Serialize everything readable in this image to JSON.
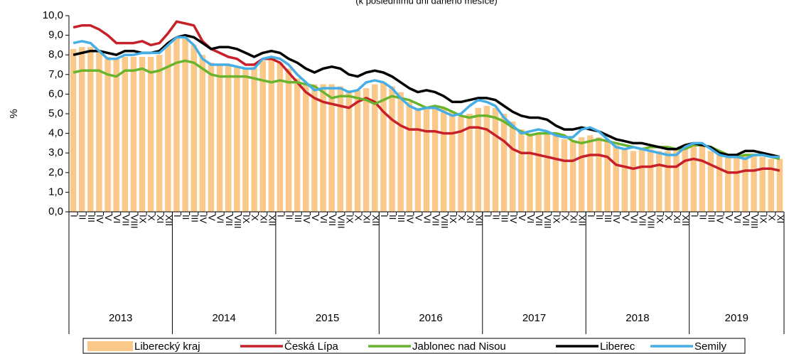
{
  "chart_data": {
    "type": "bar-line",
    "subtitle": "(k poslednímu dni daného měsíce)",
    "ylabel": "%",
    "ylim": [
      0,
      10
    ],
    "yticks": [
      {
        "value": 0,
        "label": "0,0"
      },
      {
        "value": 1,
        "label": "1,0"
      },
      {
        "value": 2,
        "label": "2,0"
      },
      {
        "value": 3,
        "label": "3,0"
      },
      {
        "value": 4,
        "label": "4,0"
      },
      {
        "value": 5,
        "label": "5,0"
      },
      {
        "value": 6,
        "label": "6,0"
      },
      {
        "value": 7,
        "label": "7,0"
      },
      {
        "value": 8,
        "label": "8,0"
      },
      {
        "value": 9,
        "label": "9,0"
      },
      {
        "value": 10,
        "label": "10,0"
      }
    ],
    "years": [
      "2013",
      "2014",
      "2015",
      "2016",
      "2017",
      "2018",
      "2019"
    ],
    "categories": [
      "I",
      "II",
      "III",
      "IV",
      "V",
      "VI",
      "VII",
      "VIII",
      "IX",
      "X",
      "XI",
      "XII",
      "I",
      "II",
      "III",
      "IV",
      "V",
      "VI",
      "VII",
      "VIII",
      "IX",
      "X",
      "XI",
      "XII",
      "I",
      "II",
      "III",
      "IV",
      "V",
      "VI",
      "VII",
      "VIII",
      "IX",
      "X",
      "XI",
      "XII",
      "I",
      "II",
      "III",
      "IV",
      "V",
      "VI",
      "VII",
      "VIII",
      "IX",
      "X",
      "XI",
      "XII",
      "I",
      "II",
      "III",
      "IV",
      "V",
      "VI",
      "VII",
      "VIII",
      "IX",
      "X",
      "XI",
      "XII",
      "I",
      "II",
      "III",
      "IV",
      "V",
      "VI",
      "VII",
      "VIII",
      "IX",
      "X",
      "XI",
      "XII",
      "I",
      "II",
      "III",
      "IV",
      "V",
      "VI",
      "VII",
      "VIII",
      "IX",
      "X",
      "XI"
    ],
    "series": [
      {
        "name": "Liberecký kraj",
        "kind": "bar",
        "color": "#fac98a",
        "values": [
          8.3,
          8.4,
          8.4,
          8.2,
          7.9,
          7.8,
          7.9,
          7.9,
          7.9,
          7.9,
          8.0,
          8.5,
          8.9,
          8.9,
          8.5,
          8.0,
          7.6,
          7.5,
          7.5,
          7.4,
          7.3,
          7.4,
          7.7,
          7.8,
          7.6,
          7.3,
          6.8,
          6.5,
          6.5,
          6.5,
          6.5,
          6.4,
          6.2,
          6.2,
          6.3,
          6.5,
          6.6,
          6.4,
          6.1,
          5.6,
          5.3,
          5.3,
          5.4,
          5.3,
          5.1,
          4.9,
          5.0,
          5.3,
          5.4,
          5.3,
          5.0,
          4.6,
          4.2,
          4.0,
          4.0,
          4.0,
          3.9,
          3.7,
          3.6,
          3.8,
          3.9,
          3.8,
          3.6,
          3.4,
          3.2,
          3.1,
          3.2,
          3.2,
          3.1,
          3.1,
          3.2,
          3.4,
          3.5,
          3.4,
          3.1,
          2.9,
          2.8,
          2.9,
          2.9,
          2.9,
          2.8,
          2.7,
          2.7
        ]
      },
      {
        "name": "Česká Lípa",
        "kind": "line",
        "color": "#c8202a",
        "values": [
          9.4,
          9.5,
          9.5,
          9.3,
          9.0,
          8.6,
          8.6,
          8.6,
          8.7,
          8.5,
          8.6,
          9.1,
          9.7,
          9.6,
          9.5,
          8.7,
          8.3,
          8.1,
          7.9,
          7.8,
          7.5,
          7.5,
          7.8,
          7.8,
          7.6,
          7.1,
          6.6,
          6.1,
          5.8,
          5.6,
          5.5,
          5.4,
          5.3,
          5.6,
          5.8,
          5.6,
          5.1,
          4.7,
          4.4,
          4.2,
          4.2,
          4.1,
          4.1,
          4.0,
          4.0,
          4.1,
          4.3,
          4.3,
          4.2,
          3.9,
          3.6,
          3.2,
          3.0,
          3.0,
          2.9,
          2.8,
          2.7,
          2.6,
          2.6,
          2.8,
          2.9,
          2.9,
          2.8,
          2.4,
          2.3,
          2.2,
          2.3,
          2.3,
          2.4,
          2.3,
          2.3,
          2.6,
          2.7,
          2.6,
          2.4,
          2.2,
          2.0,
          2.0,
          2.1,
          2.1,
          2.2,
          2.2,
          2.1
        ]
      },
      {
        "name": "Jablonec nad Nisou",
        "kind": "line",
        "color": "#6ab42d",
        "values": [
          7.1,
          7.2,
          7.2,
          7.2,
          7.0,
          6.9,
          7.2,
          7.2,
          7.3,
          7.1,
          7.2,
          7.4,
          7.6,
          7.7,
          7.6,
          7.3,
          7.0,
          6.9,
          6.9,
          6.9,
          6.9,
          6.8,
          6.7,
          6.6,
          6.7,
          6.6,
          6.6,
          6.5,
          6.4,
          6.1,
          5.8,
          5.9,
          5.9,
          5.8,
          5.7,
          5.5,
          5.7,
          5.9,
          5.8,
          5.7,
          5.5,
          5.3,
          5.4,
          5.3,
          5.1,
          4.9,
          4.8,
          4.9,
          4.9,
          4.8,
          4.6,
          4.3,
          4.1,
          3.9,
          4.0,
          4.0,
          4.0,
          3.9,
          3.6,
          3.5,
          3.6,
          3.7,
          3.6,
          3.5,
          3.4,
          3.3,
          3.2,
          3.3,
          3.3,
          3.3,
          3.2,
          3.2,
          3.4,
          3.4,
          3.3,
          3.1,
          2.9,
          2.8,
          2.9,
          2.9,
          2.9,
          2.8,
          2.7
        ]
      },
      {
        "name": "Liberec",
        "kind": "line",
        "color": "#000000",
        "values": [
          8.0,
          8.1,
          8.2,
          8.2,
          8.1,
          8.0,
          8.2,
          8.2,
          8.1,
          8.1,
          8.2,
          8.6,
          8.9,
          9.0,
          8.9,
          8.6,
          8.3,
          8.4,
          8.4,
          8.3,
          8.1,
          7.9,
          8.1,
          8.2,
          8.1,
          7.8,
          7.6,
          7.3,
          7.1,
          7.3,
          7.4,
          7.3,
          7.0,
          6.9,
          7.1,
          7.2,
          7.1,
          6.9,
          6.6,
          6.3,
          6.1,
          6.2,
          6.1,
          5.9,
          5.6,
          5.6,
          5.7,
          5.8,
          5.8,
          5.7,
          5.4,
          5.1,
          4.9,
          4.8,
          4.8,
          4.7,
          4.4,
          4.2,
          4.2,
          4.3,
          4.2,
          4.1,
          3.9,
          3.7,
          3.6,
          3.5,
          3.5,
          3.4,
          3.3,
          3.2,
          3.2,
          3.4,
          3.5,
          3.4,
          3.3,
          3.0,
          2.9,
          2.9,
          3.1,
          3.1,
          3.0,
          2.9,
          2.8
        ]
      },
      {
        "name": "Semily",
        "kind": "line",
        "color": "#45aee6",
        "values": [
          8.6,
          8.7,
          8.6,
          8.2,
          7.8,
          7.8,
          8.0,
          8.0,
          8.1,
          8.1,
          8.1,
          8.5,
          8.9,
          8.9,
          8.5,
          7.8,
          7.5,
          7.5,
          7.5,
          7.4,
          7.3,
          7.3,
          7.8,
          7.9,
          7.8,
          7.5,
          7.0,
          6.6,
          6.2,
          6.3,
          6.3,
          6.3,
          6.1,
          6.2,
          6.6,
          6.7,
          6.6,
          6.3,
          5.8,
          5.4,
          5.2,
          5.3,
          5.3,
          5.1,
          4.9,
          5.0,
          5.4,
          5.7,
          5.6,
          5.4,
          4.8,
          4.4,
          4.0,
          4.1,
          4.2,
          4.1,
          3.9,
          3.8,
          3.8,
          4.2,
          4.3,
          4.1,
          3.7,
          3.3,
          3.2,
          3.3,
          3.2,
          3.1,
          3.0,
          2.9,
          2.9,
          3.3,
          3.5,
          3.5,
          3.2,
          2.9,
          2.8,
          2.8,
          2.7,
          2.9,
          2.9,
          2.8,
          2.8
        ]
      }
    ]
  }
}
